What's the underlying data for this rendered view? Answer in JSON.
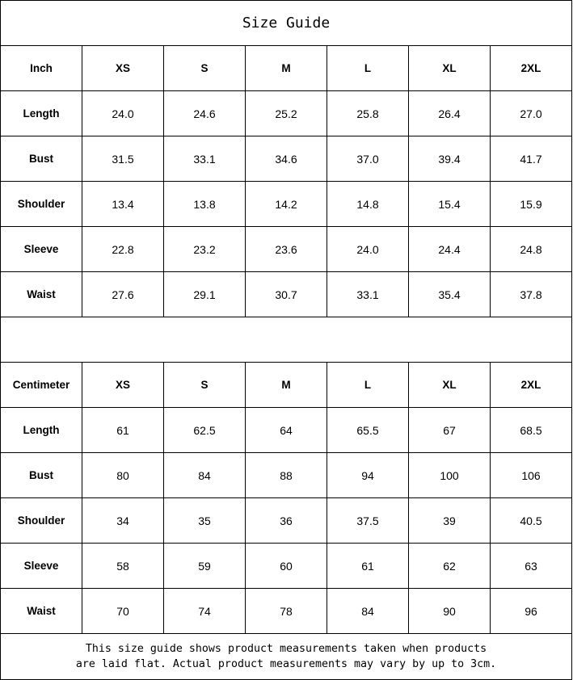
{
  "title": "Size Guide",
  "sizes": [
    "XS",
    "S",
    "M",
    "L",
    "XL",
    "2XL"
  ],
  "inch": {
    "label": "Inch",
    "rows": [
      {
        "name": "Length",
        "values": [
          "24.0",
          "24.6",
          "25.2",
          "25.8",
          "26.4",
          "27.0"
        ]
      },
      {
        "name": "Bust",
        "values": [
          "31.5",
          "33.1",
          "34.6",
          "37.0",
          "39.4",
          "41.7"
        ]
      },
      {
        "name": "Shoulder",
        "values": [
          "13.4",
          "13.8",
          "14.2",
          "14.8",
          "15.4",
          "15.9"
        ]
      },
      {
        "name": "Sleeve",
        "values": [
          "22.8",
          "23.2",
          "23.6",
          "24.0",
          "24.4",
          "24.8"
        ]
      },
      {
        "name": "Waist",
        "values": [
          "27.6",
          "29.1",
          "30.7",
          "33.1",
          "35.4",
          "37.8"
        ]
      }
    ]
  },
  "cm": {
    "label": "Centimeter",
    "rows": [
      {
        "name": "Length",
        "values": [
          "61",
          "62.5",
          "64",
          "65.5",
          "67",
          "68.5"
        ]
      },
      {
        "name": "Bust",
        "values": [
          "80",
          "84",
          "88",
          "94",
          "100",
          "106"
        ]
      },
      {
        "name": "Shoulder",
        "values": [
          "34",
          "35",
          "36",
          "37.5",
          "39",
          "40.5"
        ]
      },
      {
        "name": "Sleeve",
        "values": [
          "58",
          "59",
          "60",
          "61",
          "62",
          "63"
        ]
      },
      {
        "name": "Waist",
        "values": [
          "70",
          "74",
          "78",
          "84",
          "90",
          "96"
        ]
      }
    ]
  },
  "note": {
    "line1": "This size guide shows product measurements taken when products",
    "line2": "are laid flat. Actual product measurements may vary by up to 3cm."
  }
}
